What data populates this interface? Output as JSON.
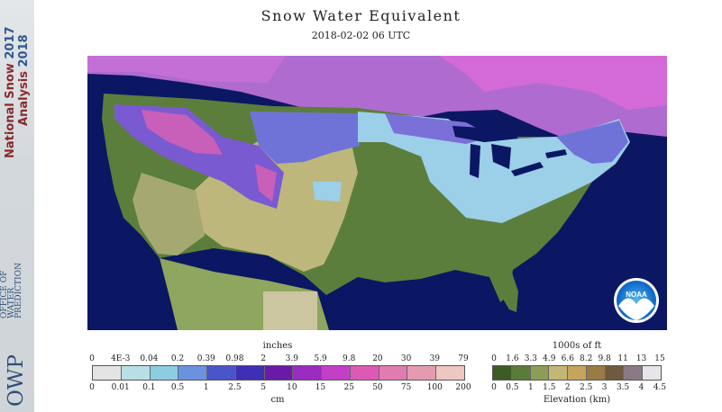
{
  "title": "Snow Water Equivalent",
  "subtitle": "2018-02-02 06 UTC",
  "sidebar": {
    "line1": "National Snow",
    "line1b": "2017",
    "line2": "Analysis",
    "line2b": "2018",
    "org_lines": [
      "OFFICE OF",
      "WATER",
      "PREDICTION"
    ],
    "org_logo": "OWP"
  },
  "noaa_logo": "NOAA",
  "swe_legend": {
    "top_unit": "inches",
    "bottom_unit": "cm",
    "top_ticks": [
      "0",
      "4E-3",
      "0.04",
      "0.2",
      "0.39",
      "0.98",
      "2",
      "3.9",
      "5.9",
      "9.8",
      "20",
      "30",
      "39",
      "79"
    ],
    "bottom_ticks": [
      "0",
      "0.01",
      "0.1",
      "0.5",
      "1",
      "2.5",
      "5",
      "10",
      "15",
      "25",
      "50",
      "75",
      "100",
      "200"
    ],
    "colors": [
      "#e4e4e4",
      "#b9dfe6",
      "#8ccde2",
      "#6b93dd",
      "#4a55c8",
      "#3f2fb4",
      "#6a1aa7",
      "#9a2cc0",
      "#c23fc8",
      "#dc5ab6",
      "#e07cb0",
      "#e49bb0",
      "#eec6c2"
    ]
  },
  "elev_legend": {
    "top_unit": "1000s of ft",
    "bottom_unit": "Elevation (km)",
    "top_ticks": [
      "0",
      "1.6",
      "3.3",
      "4.9",
      "6.6",
      "8.2",
      "9.8",
      "11",
      "13",
      "15"
    ],
    "bottom_ticks": [
      "0",
      "0.5",
      "1",
      "1.5",
      "2",
      "2.5",
      "3",
      "3.5",
      "4",
      "4.5"
    ],
    "colors": [
      "#3e5b26",
      "#5b7b3a",
      "#8c9e55",
      "#c2b774",
      "#c6a45e",
      "#9a7a45",
      "#6e5a3f",
      "#8a7a86",
      "#e6e6ea"
    ]
  }
}
